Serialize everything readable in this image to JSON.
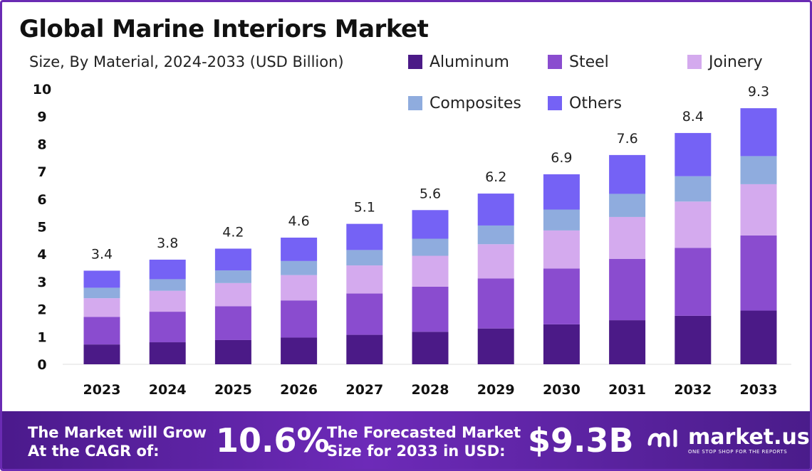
{
  "title": "Global Marine Interiors Market",
  "subtitle": "Size, By Material, 2024-2033 (USD Billion)",
  "legend": [
    {
      "label": "Aluminum",
      "color": "#4b1a87"
    },
    {
      "label": "Steel",
      "color": "#8a4ccf"
    },
    {
      "label": "Joinery",
      "color": "#d4aaee"
    },
    {
      "label": "Composites",
      "color": "#8facde"
    },
    {
      "label": "Others",
      "color": "#7562f5"
    }
  ],
  "chart_data": {
    "type": "bar",
    "stacked": true,
    "categories": [
      "2023",
      "2024",
      "2025",
      "2026",
      "2027",
      "2028",
      "2029",
      "2030",
      "2031",
      "2032",
      "2033"
    ],
    "yticks": [
      "0",
      "1",
      "2",
      "3",
      "4",
      "5",
      "6",
      "7",
      "8",
      "9",
      "10"
    ],
    "ylim": [
      0,
      10
    ],
    "totals": [
      3.4,
      3.8,
      4.2,
      4.6,
      5.1,
      5.6,
      6.2,
      6.9,
      7.6,
      8.4,
      9.3
    ],
    "series": [
      {
        "name": "Aluminum",
        "color": "#4b1a87",
        "values": [
          0.72,
          0.8,
          0.88,
          0.97,
          1.07,
          1.18,
          1.3,
          1.45,
          1.6,
          1.76,
          1.95
        ]
      },
      {
        "name": "Steel",
        "color": "#8a4ccf",
        "values": [
          1.0,
          1.11,
          1.23,
          1.35,
          1.5,
          1.64,
          1.82,
          2.03,
          2.23,
          2.47,
          2.73
        ]
      },
      {
        "name": "Joinery",
        "color": "#d4aaee",
        "values": [
          0.68,
          0.76,
          0.84,
          0.92,
          1.02,
          1.12,
          1.24,
          1.38,
          1.52,
          1.68,
          1.86
        ]
      },
      {
        "name": "Composites",
        "color": "#8facde",
        "values": [
          0.38,
          0.42,
          0.46,
          0.51,
          0.56,
          0.62,
          0.68,
          0.76,
          0.84,
          0.92,
          1.02
        ]
      },
      {
        "name": "Others",
        "color": "#7562f5",
        "values": [
          0.62,
          0.71,
          0.79,
          0.85,
          0.95,
          1.04,
          1.16,
          1.28,
          1.41,
          1.57,
          1.74
        ]
      }
    ],
    "grid": false,
    "legend_position": "top-right"
  },
  "footer": {
    "cagr_text_line1": "The Market will Grow",
    "cagr_text_line2": "At the CAGR of:",
    "cagr_value": "10.6%",
    "forecast_text_line1": "The Forecasted Market",
    "forecast_text_line2": "Size for 2033 in USD:",
    "forecast_value": "$9.3B",
    "brand_name": "market.us",
    "brand_tagline": "ONE STOP SHOP FOR THE REPORTS"
  }
}
